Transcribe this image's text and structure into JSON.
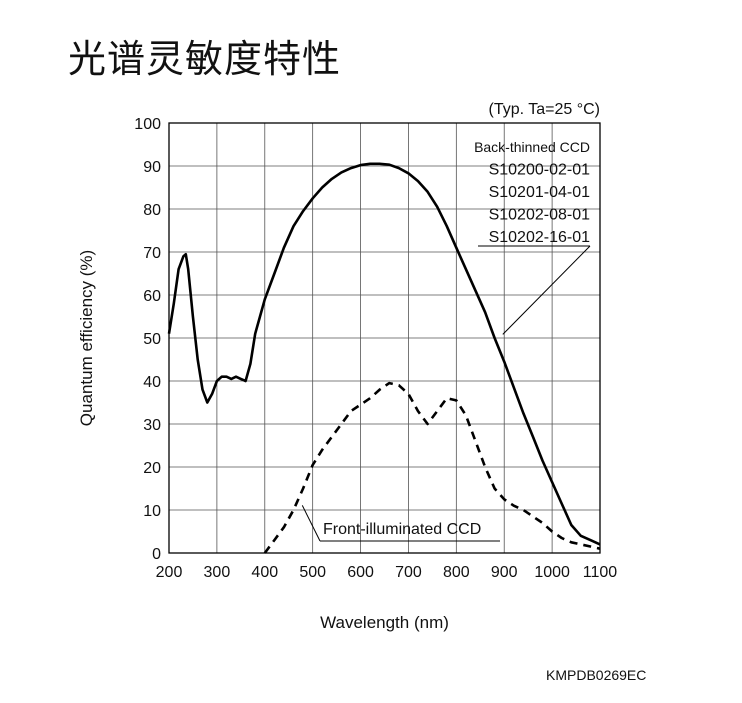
{
  "page": {
    "heading": "光谱灵敏度特性",
    "doc_code": "KMPDB0269EC"
  },
  "chart_data": {
    "type": "line",
    "condition": "(Typ. Ta=25 °C)",
    "xlabel": "Wavelength (nm)",
    "ylabel": "Quantum efficiency (%)",
    "xlim": [
      200,
      1100
    ],
    "ylim": [
      0,
      100
    ],
    "x_ticks": [
      200,
      300,
      400,
      500,
      600,
      700,
      800,
      900,
      1000,
      1100
    ],
    "y_ticks": [
      0,
      10,
      20,
      30,
      40,
      50,
      60,
      70,
      80,
      90,
      100
    ],
    "grid": true,
    "series": [
      {
        "name": "Back-thinned CCD",
        "models": [
          "S10200-02-01",
          "S10201-04-01",
          "S10202-08-01",
          "S10202-16-01"
        ],
        "style": "solid",
        "color": "#000000",
        "points": [
          [
            200,
            51
          ],
          [
            210,
            58
          ],
          [
            220,
            66
          ],
          [
            230,
            69
          ],
          [
            235,
            69.5
          ],
          [
            240,
            66
          ],
          [
            250,
            55
          ],
          [
            260,
            45
          ],
          [
            270,
            38
          ],
          [
            280,
            35
          ],
          [
            290,
            37
          ],
          [
            300,
            40
          ],
          [
            310,
            41
          ],
          [
            320,
            41
          ],
          [
            330,
            40.5
          ],
          [
            340,
            41
          ],
          [
            350,
            40.5
          ],
          [
            360,
            40
          ],
          [
            370,
            44
          ],
          [
            380,
            51
          ],
          [
            390,
            55
          ],
          [
            400,
            59
          ],
          [
            420,
            65
          ],
          [
            440,
            71
          ],
          [
            460,
            76
          ],
          [
            480,
            79.5
          ],
          [
            500,
            82.5
          ],
          [
            520,
            85
          ],
          [
            540,
            87
          ],
          [
            560,
            88.5
          ],
          [
            580,
            89.5
          ],
          [
            600,
            90.2
          ],
          [
            620,
            90.5
          ],
          [
            640,
            90.5
          ],
          [
            660,
            90.3
          ],
          [
            680,
            89.5
          ],
          [
            700,
            88.3
          ],
          [
            720,
            86.5
          ],
          [
            740,
            84
          ],
          [
            760,
            80.5
          ],
          [
            780,
            76
          ],
          [
            800,
            71
          ],
          [
            820,
            66
          ],
          [
            840,
            61
          ],
          [
            860,
            56
          ],
          [
            880,
            50
          ],
          [
            900,
            44.5
          ],
          [
            920,
            38.5
          ],
          [
            940,
            32.5
          ],
          [
            960,
            27
          ],
          [
            980,
            21.5
          ],
          [
            1000,
            16.5
          ],
          [
            1020,
            11.5
          ],
          [
            1040,
            6.5
          ],
          [
            1060,
            4
          ],
          [
            1080,
            3
          ],
          [
            1100,
            2
          ]
        ]
      },
      {
        "name": "Front-illuminated CCD",
        "style": "dashed",
        "color": "#000000",
        "points": [
          [
            400,
            0
          ],
          [
            420,
            3
          ],
          [
            440,
            6
          ],
          [
            460,
            10
          ],
          [
            480,
            15
          ],
          [
            500,
            20.5
          ],
          [
            520,
            24
          ],
          [
            540,
            27
          ],
          [
            560,
            30
          ],
          [
            580,
            33
          ],
          [
            600,
            34.5
          ],
          [
            620,
            36
          ],
          [
            640,
            38
          ],
          [
            660,
            39.5
          ],
          [
            680,
            39
          ],
          [
            700,
            37
          ],
          [
            720,
            33
          ],
          [
            740,
            30
          ],
          [
            760,
            33
          ],
          [
            780,
            36
          ],
          [
            800,
            35.5
          ],
          [
            820,
            32
          ],
          [
            840,
            26
          ],
          [
            860,
            20
          ],
          [
            880,
            15
          ],
          [
            900,
            12.5
          ],
          [
            920,
            11
          ],
          [
            940,
            10
          ],
          [
            960,
            8.5
          ],
          [
            980,
            7
          ],
          [
            1000,
            5
          ],
          [
            1020,
            3.5
          ],
          [
            1040,
            2.5
          ],
          [
            1060,
            2
          ],
          [
            1080,
            1.5
          ],
          [
            1100,
            1
          ]
        ]
      }
    ],
    "annotations": [
      {
        "text": "Back-thinned CCD",
        "points_to": [
          920,
          52
        ]
      },
      {
        "text": "Front-illuminated CCD",
        "points_to": [
          470,
          12
        ]
      }
    ]
  }
}
